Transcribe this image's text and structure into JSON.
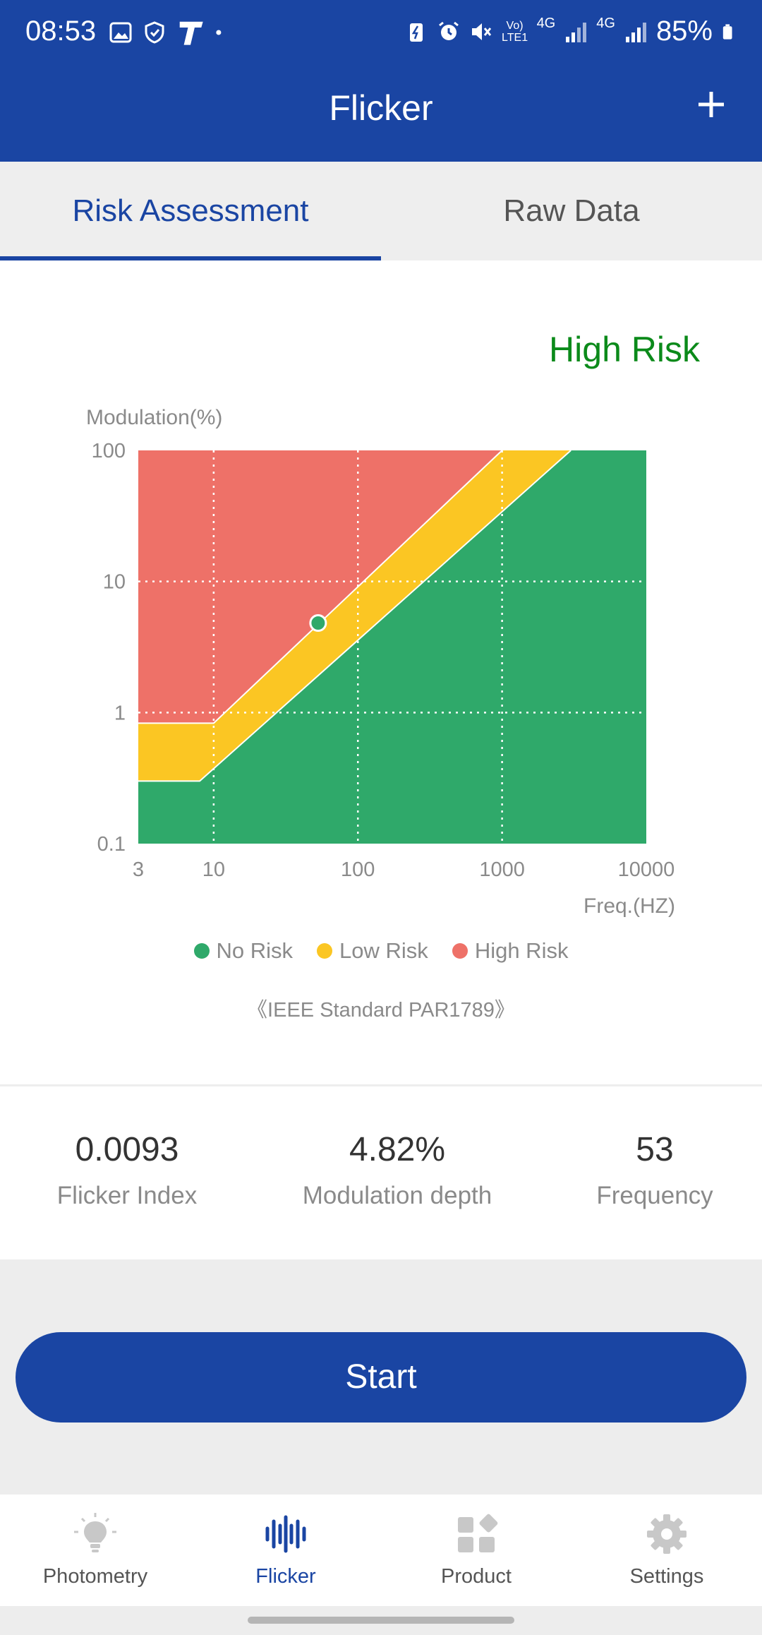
{
  "status_bar": {
    "time": "08:53",
    "network_1": "4G",
    "network_2": "4G",
    "volte": "Vo) LTE1",
    "battery": "85%"
  },
  "app_bar": {
    "title": "Flicker"
  },
  "tabs": [
    {
      "label": "Risk Assessment",
      "active": true
    },
    {
      "label": "Raw Data",
      "active": false
    }
  ],
  "assessment": {
    "result": "High Risk",
    "result_color": "#0b8a1a"
  },
  "chart_data": {
    "type": "scatter",
    "ylabel": "Modulation(%)",
    "xlabel": "Freq.(HZ)",
    "x_scale": "log",
    "y_scale": "log",
    "xlim": [
      3,
      10000
    ],
    "ylim": [
      0.1,
      100
    ],
    "x_ticks": [
      "3",
      "10",
      "100",
      "1000",
      "10000"
    ],
    "y_ticks": [
      "100",
      "10",
      "1",
      "0.1"
    ],
    "grid": true,
    "regions": [
      {
        "name": "No Risk",
        "color": "#2fa96a"
      },
      {
        "name": "Low Risk",
        "color": "#fbc623"
      },
      {
        "name": "High Risk",
        "color": "#ee7168"
      }
    ],
    "low_risk_boundary": [
      [
        3,
        0.3
      ],
      [
        8,
        0.3
      ],
      [
        3000,
        100
      ]
    ],
    "high_risk_boundary": [
      [
        3,
        0.83
      ],
      [
        10,
        0.83
      ],
      [
        1000,
        100
      ]
    ],
    "points": [
      {
        "x": 53,
        "y": 4.82,
        "color": "#2fa96a"
      }
    ],
    "legend": [
      "No Risk",
      "Low Risk",
      "High Risk"
    ],
    "legend_position": "bottom",
    "note": "《IEEE Standard PAR1789》"
  },
  "metrics": [
    {
      "value": "0.0093",
      "label": "Flicker Index"
    },
    {
      "value": "4.82%",
      "label": "Modulation depth"
    },
    {
      "value": "53",
      "label": "Frequency"
    }
  ],
  "start_button": {
    "label": "Start"
  },
  "bottom_nav": [
    {
      "label": "Photometry",
      "icon": "bulb-icon",
      "active": false
    },
    {
      "label": "Flicker",
      "icon": "waveform-icon",
      "active": true
    },
    {
      "label": "Product",
      "icon": "grid-icon",
      "active": false
    },
    {
      "label": "Settings",
      "icon": "gear-icon",
      "active": false
    }
  ],
  "colors": {
    "primary": "#1a45a3",
    "no_risk": "#2fa96a",
    "low_risk": "#fbc623",
    "high_risk": "#ee7168"
  }
}
